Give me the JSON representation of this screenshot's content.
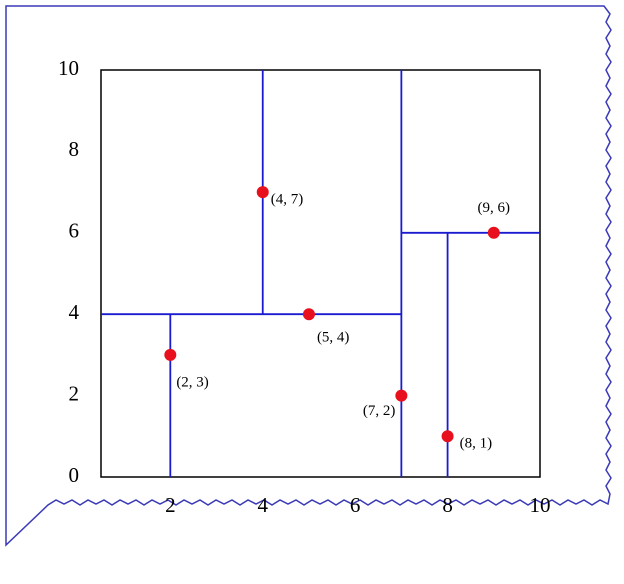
{
  "chart_data": {
    "type": "scatter",
    "x": [
      2,
      5,
      9,
      4,
      8,
      7
    ],
    "y": [
      3,
      4,
      6,
      7,
      1,
      2
    ],
    "value_labels": [
      "(2, 3)",
      "(5, 4)",
      "(9, 6)",
      "(4, 7)",
      "(8, 1)",
      "(7, 2)"
    ],
    "color": "#e8101c",
    "splits": [
      {
        "x": [
          7,
          7
        ],
        "y": [
          0,
          10
        ]
      },
      {
        "x": [
          0.5,
          7
        ],
        "y": [
          4,
          4
        ]
      },
      {
        "x": [
          2,
          2
        ],
        "y": [
          0,
          4
        ]
      },
      {
        "x": [
          4,
          4
        ],
        "y": [
          4,
          10
        ]
      },
      {
        "x": [
          7,
          10
        ],
        "y": [
          6,
          6
        ]
      },
      {
        "x": [
          8,
          8
        ],
        "y": [
          0,
          6
        ]
      }
    ],
    "split_color": "#1a1ad0",
    "xlim": [
      0.5,
      10
    ],
    "ylim": [
      0,
      10
    ],
    "xticks": [
      2,
      4,
      6,
      8,
      10
    ],
    "yticks": [
      0,
      2,
      4,
      6,
      8,
      10
    ]
  }
}
